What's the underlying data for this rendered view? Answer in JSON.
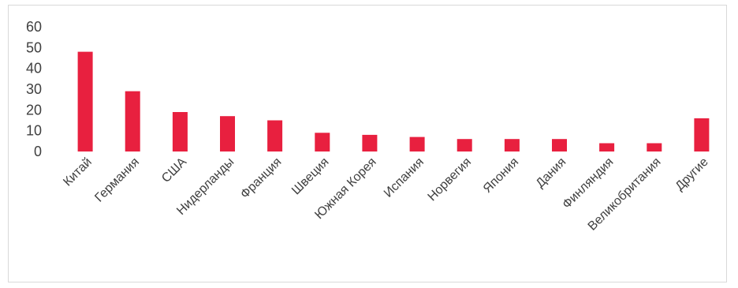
{
  "chart_data": {
    "type": "bar",
    "title": "",
    "xlabel": "",
    "ylabel": "",
    "ylim": [
      0,
      60
    ],
    "yticks": [
      0,
      10,
      20,
      30,
      40,
      50,
      60
    ],
    "grid": false,
    "legend": "none",
    "bar_color": "#e8203f",
    "categories": [
      "Китай",
      "Германия",
      "США",
      "Нидерланды",
      "Франция",
      "Швеция",
      "Южная Корея",
      "Испания",
      "Норвегия",
      "Япония",
      "Дания",
      "Финляндия",
      "Великобритания",
      "Другие"
    ],
    "values": [
      48,
      29,
      19,
      17,
      15,
      9,
      8,
      7,
      6,
      6,
      6,
      4,
      4,
      16
    ]
  }
}
